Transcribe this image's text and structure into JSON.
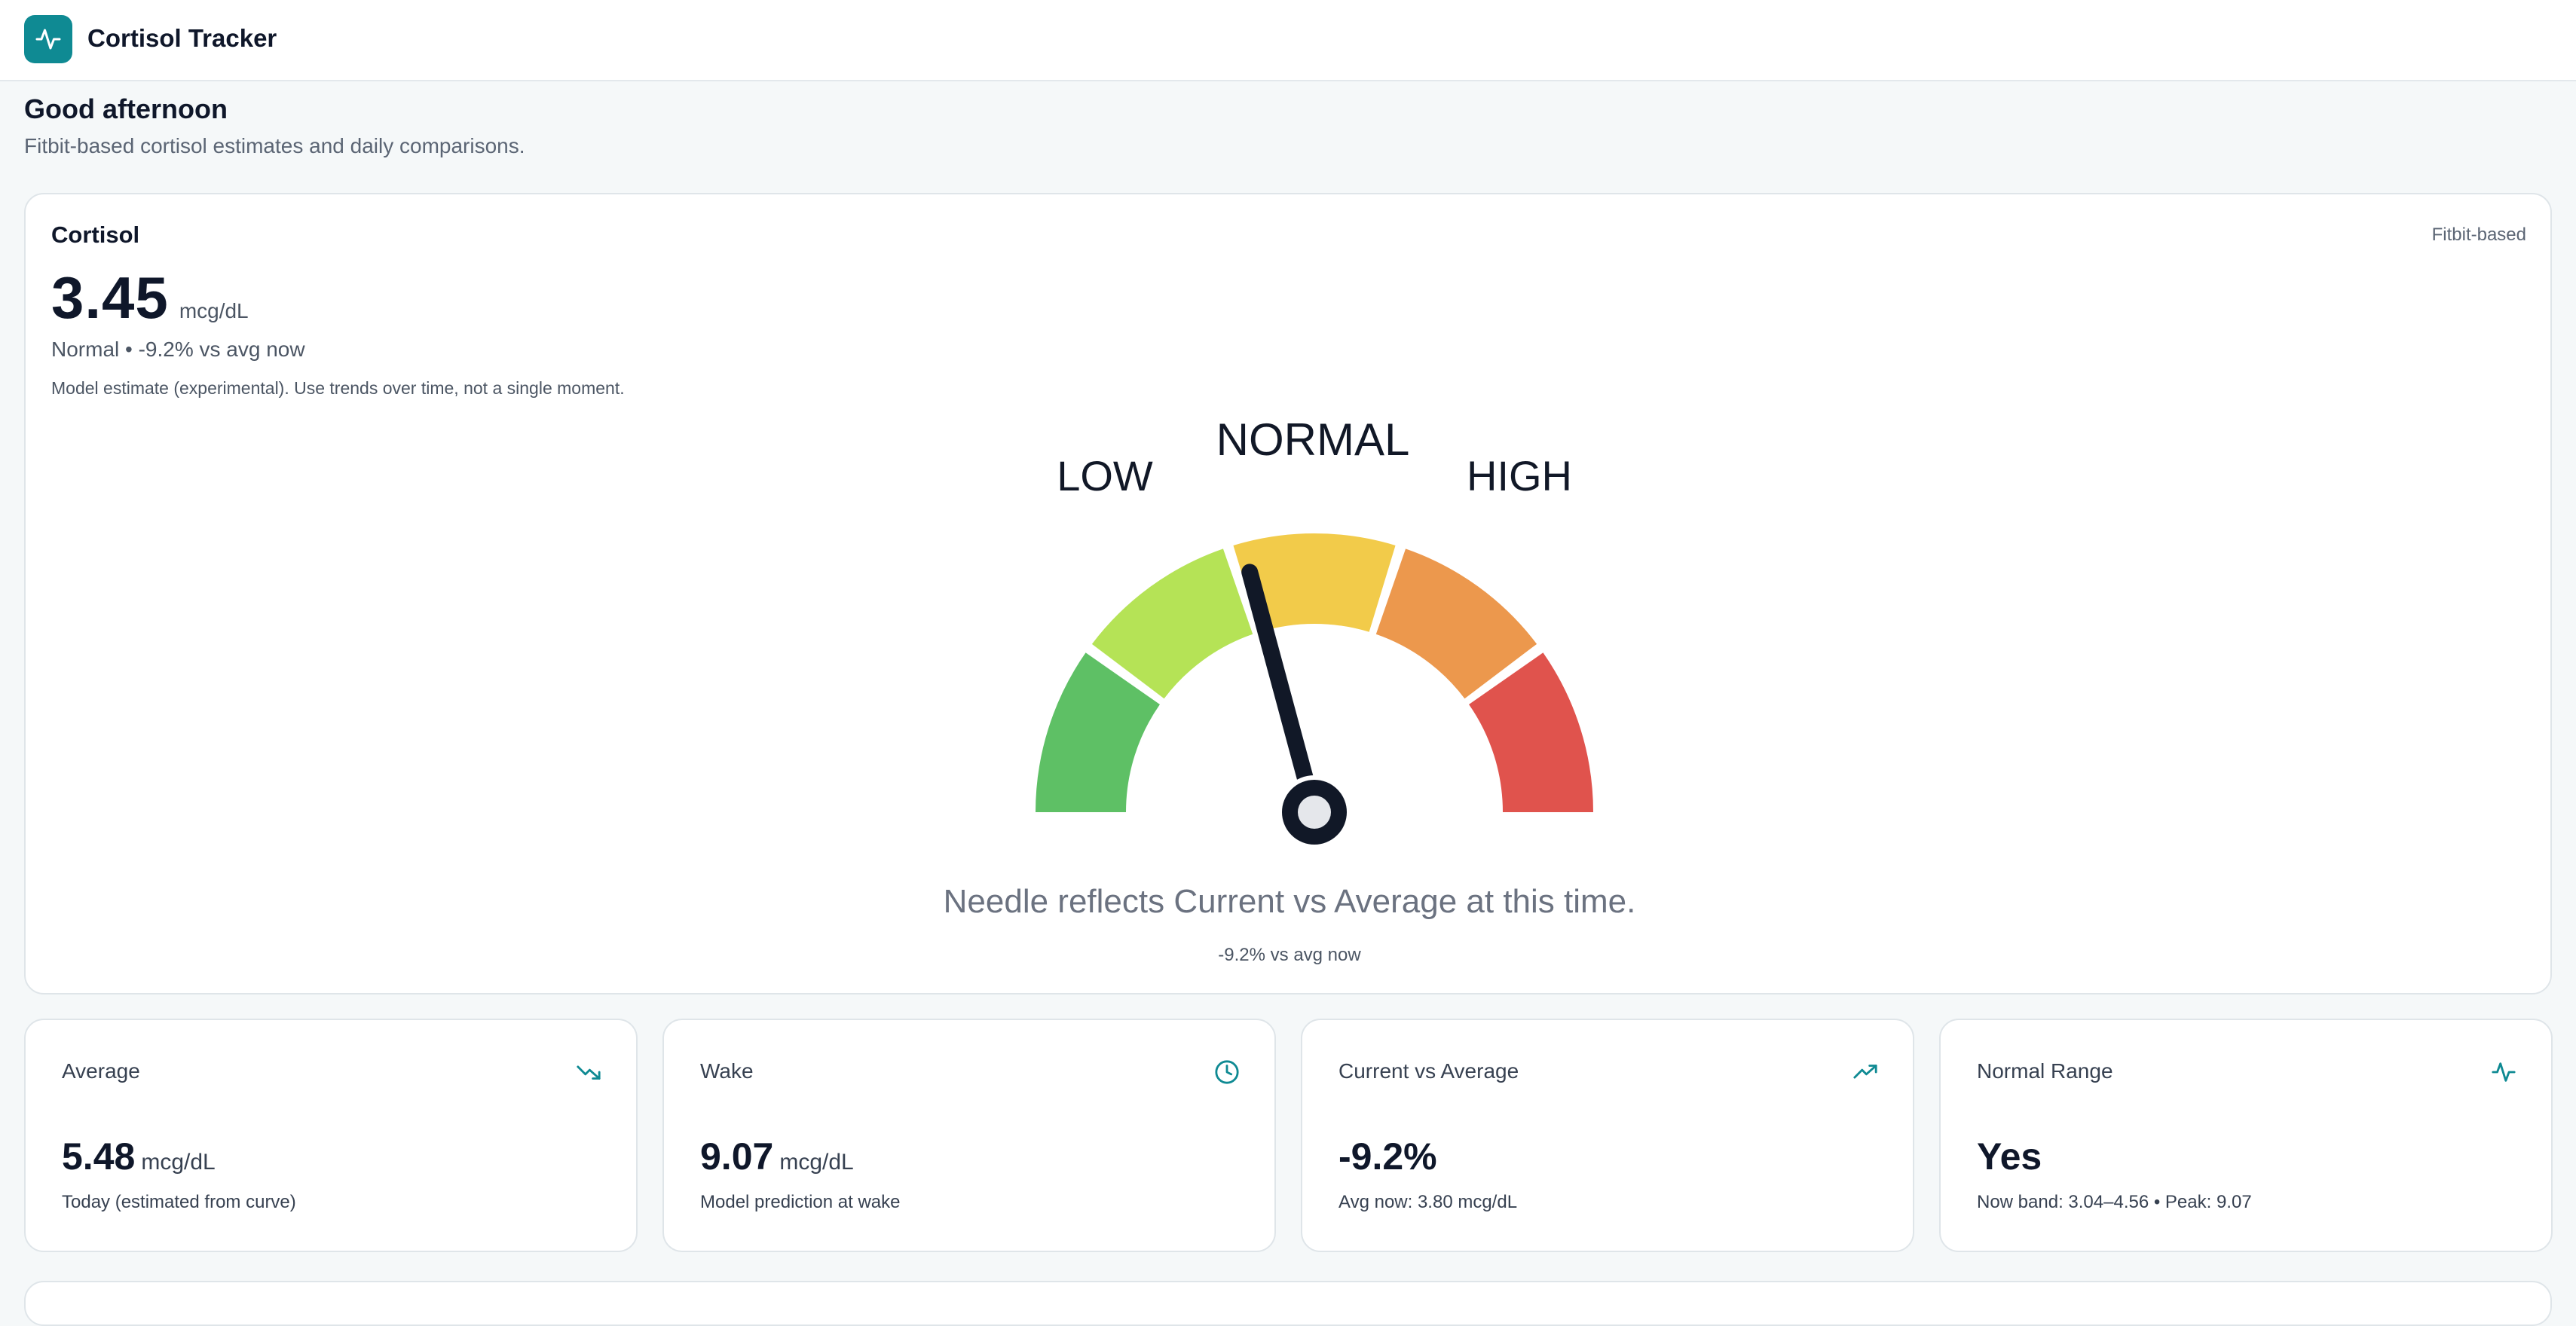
{
  "app": {
    "title": "Cortisol Tracker",
    "logo_icon": "activity-icon"
  },
  "header": {
    "greeting": "Good afternoon",
    "subtitle": "Fitbit-based cortisol estimates and daily comparisons."
  },
  "cortisol": {
    "label": "Cortisol",
    "source": "Fitbit-based",
    "value": "3.45",
    "unit": "mcg/dL",
    "status": "Normal • -9.2% vs avg now",
    "disclaimer": "Model estimate (experimental). Use trends over time, not a single moment."
  },
  "gauge": {
    "labels": {
      "low": "LOW",
      "normal": "NORMAL",
      "high": "HIGH"
    },
    "segment_colors": [
      "#5ec065",
      "#b5e356",
      "#f2cb4a",
      "#ec984d",
      "#e0534d"
    ],
    "needle_delta_percent": -9.2,
    "caption": "Needle reflects Current vs Average at this time.",
    "delta_text": "-9.2% vs avg now"
  },
  "stats": [
    {
      "label": "Average",
      "icon": "trending-down-icon",
      "value": "5.48",
      "unit": "mcg/dL",
      "note": "Today (estimated from curve)"
    },
    {
      "label": "Wake",
      "icon": "clock-icon",
      "value": "9.07",
      "unit": "mcg/dL",
      "note": "Model prediction at wake"
    },
    {
      "label": "Current vs Average",
      "icon": "trending-up-icon",
      "value": "-9.2%",
      "unit": "",
      "note": "Avg now: 3.80 mcg/dL"
    },
    {
      "label": "Normal Range",
      "icon": "activity-icon",
      "value": "Yes",
      "unit": "",
      "note": "Now band: 3.04–4.56 • Peak: 9.07"
    }
  ],
  "colors": {
    "accent": "#0f8a93",
    "needle": "#111827"
  }
}
